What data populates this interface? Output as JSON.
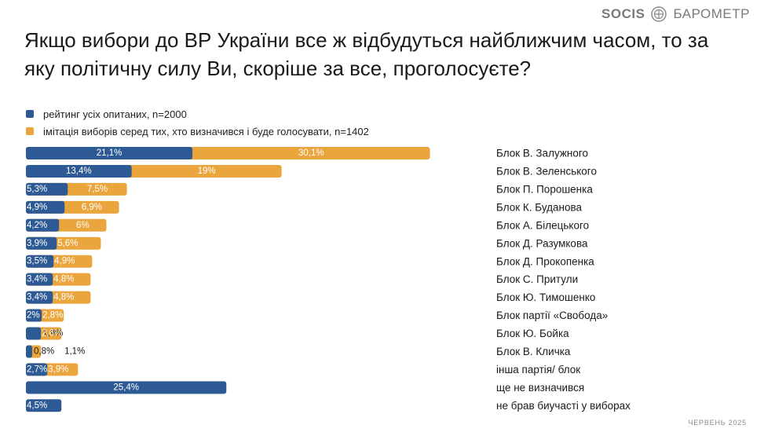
{
  "brand": {
    "socis": "SOCIS",
    "barometr": "БАРОМЕТР"
  },
  "title": "Якщо вибори до ВР України все ж відбудуться найближчим часом, то за яку політичну силу Ви, скоріше за все, проголосуєте?",
  "footer": {
    "date": "ЧЕРВЕНЬ 2025"
  },
  "chart_data": {
    "type": "bar",
    "orientation": "horizontal",
    "categories": [
      "Блок В. Залужного",
      "Блок В. Зеленського",
      "Блок П. Порошенка",
      "Блок К. Буданова",
      "Блок А. Білецького",
      "Блок Д. Разумкова",
      "Блок Д. Прокопенка",
      "Блок С. Притули",
      "Блок Ю. Тимошенко",
      "Блок партії «Свобода»",
      "Блок Ю. Бойка",
      "Блок В. Кличка",
      "інша партія/ блок",
      "ще не визначився",
      "не брав биучасті у виборах"
    ],
    "series": [
      {
        "name": "рейтинг усіх опитаних, n=2000",
        "color": "#2d5a94",
        "values": [
          21.1,
          13.4,
          5.3,
          4.9,
          4.2,
          3.9,
          3.5,
          3.4,
          3.4,
          2,
          1.9,
          0.8,
          2.7,
          25.4,
          4.5
        ],
        "labels": [
          "21,1%",
          "13,4%",
          "5,3%",
          "4,9%",
          "4,2%",
          "3,9%",
          "3,5%",
          "3,4%",
          "3,4%",
          "2%",
          "1,9%",
          "0,8%",
          "2,7%",
          "25,4%",
          "4,5%"
        ]
      },
      {
        "name": "імітація виборів серед тих, хто визначився і буде голосувати, n=1402",
        "color": "#eba53d",
        "values": [
          30.1,
          19,
          7.5,
          6.9,
          6,
          5.6,
          4.9,
          4.8,
          4.8,
          2.8,
          2.6,
          1.1,
          3.9,
          null,
          null
        ],
        "labels": [
          "30,1%",
          "19%",
          "7,5%",
          "6,9%",
          "6%",
          "5,6%",
          "4,9%",
          "4,8%",
          "4,8%",
          "2,8%",
          "2,6%",
          "1,1%",
          "3,9%",
          "",
          ""
        ]
      }
    ],
    "stacked": true,
    "grid": false,
    "legend_position": "top-left"
  }
}
